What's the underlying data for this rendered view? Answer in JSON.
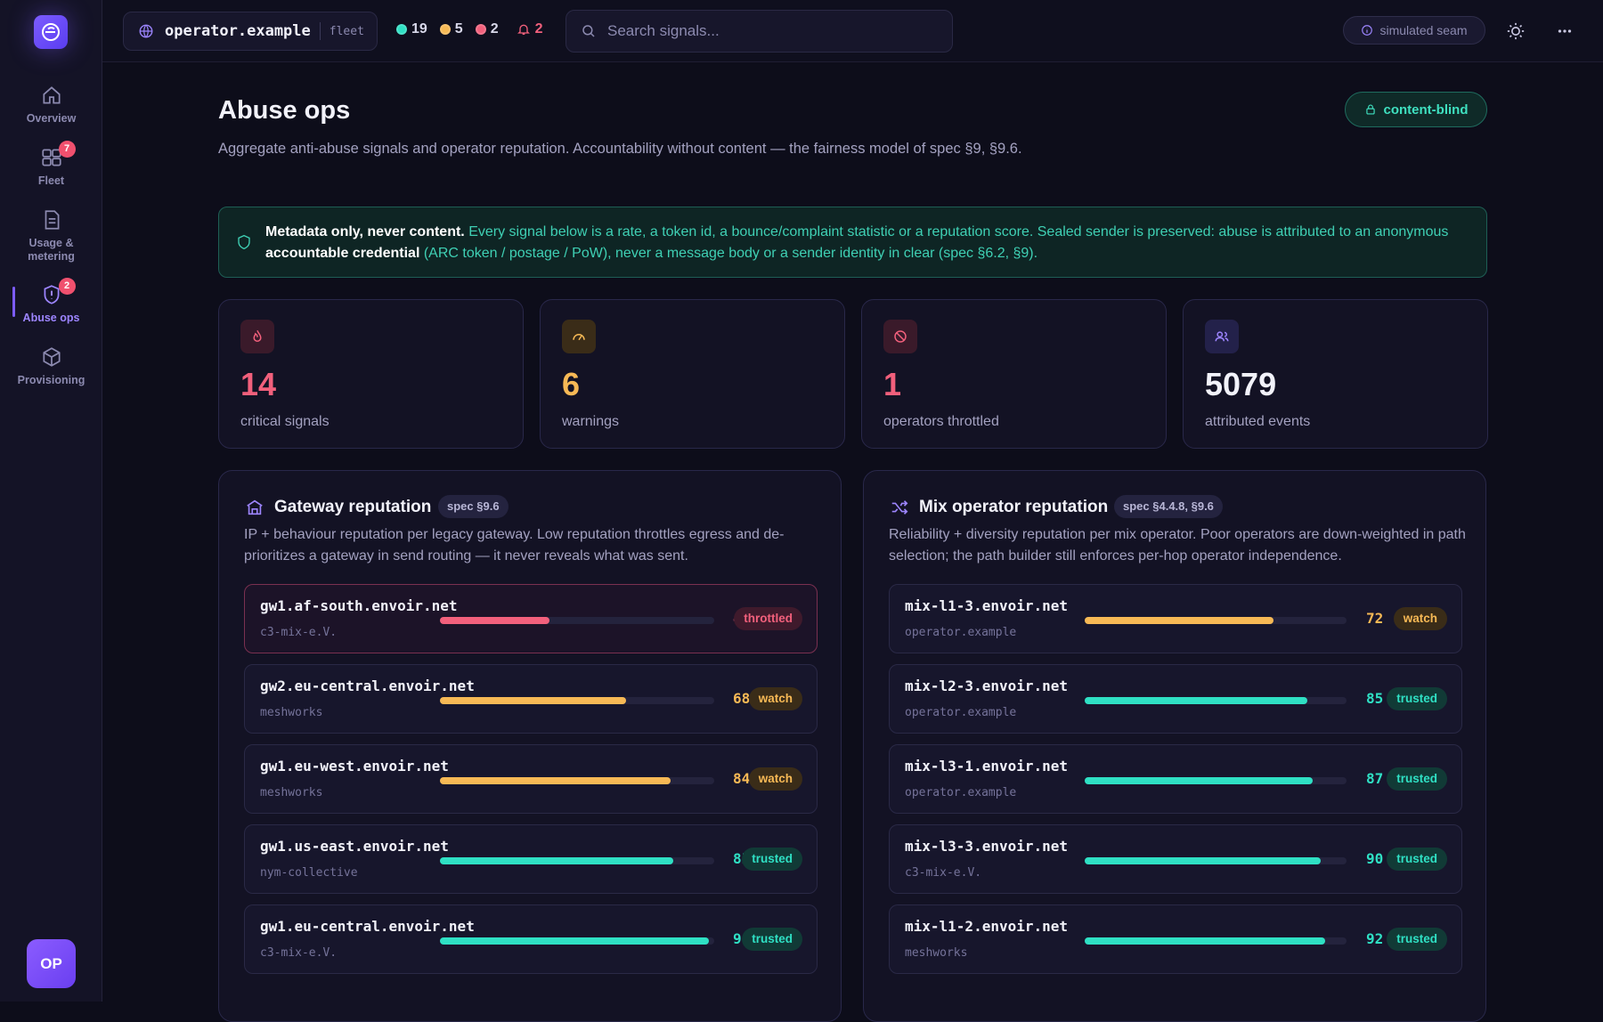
{
  "sidebar": {
    "items": [
      {
        "label": "Overview",
        "badge": ""
      },
      {
        "label": "Fleet",
        "badge": "7"
      },
      {
        "label": "Usage & metering",
        "badge": ""
      },
      {
        "label": "Abuse ops",
        "badge": "2"
      },
      {
        "label": "Provisioning",
        "badge": ""
      }
    ],
    "avatar": "OP"
  },
  "topbar": {
    "org_name": "operator.example",
    "org_tag": "fleet",
    "counts": {
      "healthy": "19",
      "warning": "5",
      "critical": "2",
      "alerts": "2"
    },
    "search_placeholder": "Search signals...",
    "seam_label": "simulated seam"
  },
  "page": {
    "title": "Abuse ops",
    "description": "Aggregate anti-abuse signals and operator reputation. Accountability without content — the fairness model of spec §9, §9.6.",
    "content_blind_label": "content-blind"
  },
  "notice": {
    "lead": "Metadata only, never content.",
    "text1": " Every signal below is a rate, a token id, a bounce/complaint statistic or a reputation score. Sealed sender is preserved: abuse is attributed to an anonymous ",
    "bold2": "accountable credential",
    "text2": " (ARC token / postage / PoW), never a message body or a sender identity in clear (spec §6.2, §9)."
  },
  "stats": [
    {
      "value": "14",
      "label": "critical signals",
      "color": "#f2607c"
    },
    {
      "value": "6",
      "label": "warnings",
      "color": "#f7b955"
    },
    {
      "value": "1",
      "label": "operators throttled",
      "color": "#f2607c"
    },
    {
      "value": "5079",
      "label": "attributed events",
      "color": "#f2f2fa"
    }
  ],
  "gateway": {
    "title": "Gateway reputation",
    "spec": "spec §9.6",
    "description": "IP + behaviour reputation per legacy gateway. Low reputation throttles egress and de-prioritizes a gateway in send routing — it never reveals what was sent.",
    "rows": [
      {
        "name": "gw1.af-south.envoir.net",
        "sub": "c3-mix-e.V.",
        "score": 40,
        "status": "throttled"
      },
      {
        "name": "gw2.eu-central.envoir.net",
        "sub": "meshworks",
        "score": 68,
        "status": "watch"
      },
      {
        "name": "gw1.eu-west.envoir.net",
        "sub": "meshworks",
        "score": 84,
        "status": "watch"
      },
      {
        "name": "gw1.us-east.envoir.net",
        "sub": "nym-collective",
        "score": 85,
        "status": "trusted"
      },
      {
        "name": "gw1.eu-central.envoir.net",
        "sub": "c3-mix-e.V.",
        "score": 98,
        "status": "trusted"
      }
    ]
  },
  "mix": {
    "title": "Mix operator reputation",
    "spec": "spec §4.4.8, §9.6",
    "description": "Reliability + diversity reputation per mix operator. Poor operators are down-weighted in path selection; the path builder still enforces per-hop operator independence.",
    "rows": [
      {
        "name": "mix-l1-3.envoir.net",
        "sub": "operator.example",
        "score": 72,
        "status": "watch"
      },
      {
        "name": "mix-l2-3.envoir.net",
        "sub": "operator.example",
        "score": 85,
        "status": "trusted"
      },
      {
        "name": "mix-l3-1.envoir.net",
        "sub": "operator.example",
        "score": 87,
        "status": "trusted"
      },
      {
        "name": "mix-l3-3.envoir.net",
        "sub": "c3-mix-e.V.",
        "score": 90,
        "status": "trusted"
      },
      {
        "name": "mix-l1-2.envoir.net",
        "sub": "meshworks",
        "score": 92,
        "status": "trusted"
      }
    ]
  },
  "colors": {
    "throttled": "#f2607c",
    "watch": "#f7b955",
    "trusted": "#2fe0c4",
    "accent": "#7c5cff"
  }
}
